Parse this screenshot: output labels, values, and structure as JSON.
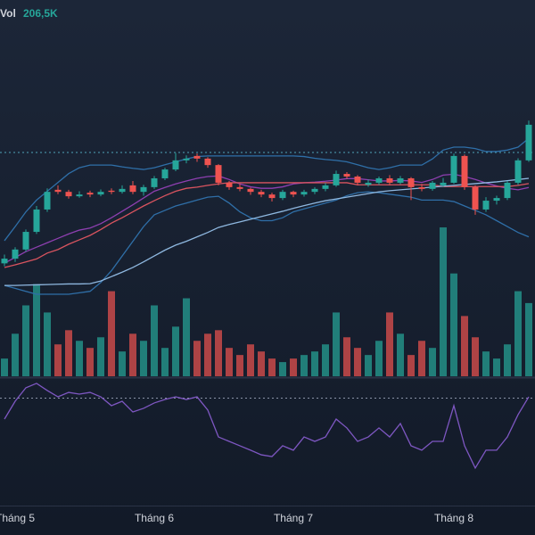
{
  "chart_data": [
    {
      "type": "candlestick",
      "categories": [
        null,
        "Tháng 5",
        null,
        null,
        null,
        null,
        null,
        null,
        null,
        null,
        null,
        null,
        null,
        null,
        "Tháng 6",
        null,
        null,
        null,
        null,
        null,
        null,
        null,
        null,
        null,
        null,
        null,
        null,
        "Tháng 7",
        null,
        null,
        null,
        null,
        null,
        null,
        null,
        null,
        null,
        null,
        null,
        null,
        null,
        null,
        "Tháng 8",
        null,
        null,
        null,
        null,
        null,
        null,
        null
      ],
      "open": [
        21.05,
        21.21,
        21.52,
        22.12,
        22.88,
        23.55,
        23.48,
        23.33,
        23.45,
        23.39,
        23.52,
        23.48,
        23.7,
        23.48,
        23.64,
        23.94,
        24.24,
        24.55,
        24.7,
        24.61,
        24.39,
        23.79,
        23.64,
        23.58,
        23.48,
        23.39,
        23.27,
        23.48,
        23.39,
        23.48,
        23.58,
        23.7,
        24.09,
        24.0,
        23.72,
        23.79,
        23.94,
        23.79,
        23.94,
        23.64,
        23.58,
        23.7,
        23.79,
        24.7,
        23.64,
        22.88,
        23.18,
        23.27,
        23.79,
        24.55
      ],
      "high": [
        21.35,
        21.6,
        22.2,
        23.0,
        23.6,
        23.7,
        23.55,
        23.5,
        23.52,
        23.56,
        23.6,
        23.7,
        23.85,
        23.72,
        24.02,
        24.3,
        24.8,
        24.72,
        24.78,
        24.66,
        24.42,
        23.85,
        23.75,
        23.62,
        23.55,
        23.45,
        23.55,
        23.52,
        23.55,
        23.64,
        23.78,
        24.2,
        24.15,
        24.05,
        23.9,
        24.0,
        24.05,
        24.02,
        23.98,
        23.75,
        23.85,
        23.95,
        24.78,
        24.75,
        23.7,
        23.3,
        23.35,
        23.85,
        24.62,
        25.9
      ],
      "low": [
        20.95,
        21.1,
        21.45,
        22.05,
        22.8,
        23.4,
        23.25,
        23.28,
        23.3,
        23.33,
        23.4,
        23.42,
        23.4,
        23.35,
        23.58,
        23.88,
        24.18,
        24.45,
        24.5,
        24.3,
        23.7,
        23.55,
        23.5,
        23.38,
        23.3,
        23.15,
        23.2,
        23.3,
        23.32,
        23.4,
        23.5,
        23.65,
        23.92,
        23.7,
        23.65,
        23.72,
        23.7,
        23.74,
        23.2,
        23.5,
        23.52,
        23.65,
        23.75,
        23.55,
        22.7,
        22.8,
        23.05,
        23.2,
        23.72,
        24.5
      ],
      "close": [
        21.21,
        21.52,
        22.12,
        22.88,
        23.48,
        23.48,
        23.33,
        23.39,
        23.39,
        23.48,
        23.48,
        23.58,
        23.48,
        23.64,
        23.94,
        24.24,
        24.55,
        24.61,
        24.61,
        24.39,
        23.79,
        23.64,
        23.58,
        23.48,
        23.39,
        23.27,
        23.48,
        23.39,
        23.48,
        23.58,
        23.7,
        24.09,
        24.0,
        23.79,
        23.79,
        23.94,
        23.79,
        23.94,
        23.64,
        23.58,
        23.79,
        23.79,
        24.7,
        23.64,
        22.88,
        23.18,
        23.27,
        23.79,
        24.55,
        25.76
      ],
      "up_color": "#26a69a",
      "down_color": "#ef5350",
      "ylim": [
        20,
        30
      ],
      "series": [
        {
          "color": "#2f6fa8",
          "values": [
            21.82,
            22.3,
            22.8,
            23.2,
            23.5,
            23.8,
            24.1,
            24.3,
            24.39,
            24.39,
            24.39,
            24.33,
            24.28,
            24.24,
            24.3,
            24.4,
            24.5,
            24.6,
            24.68,
            24.7,
            24.7,
            24.7,
            24.7,
            24.7,
            24.7,
            24.7,
            24.7,
            24.7,
            24.68,
            24.62,
            24.58,
            24.55,
            24.5,
            24.4,
            24.3,
            24.24,
            24.3,
            24.39,
            24.39,
            24.39,
            24.6,
            24.9,
            25.0,
            25.0,
            24.95,
            24.85,
            24.85,
            24.9,
            25.0,
            25.3
          ]
        },
        {
          "color": "#2f6fa8",
          "values": [
            20.3,
            20.2,
            20.1,
            20.0,
            20.0,
            20.0,
            20.0,
            20.05,
            20.1,
            20.4,
            20.8,
            21.3,
            21.8,
            22.3,
            22.7,
            22.85,
            23.0,
            23.1,
            23.2,
            23.3,
            23.33,
            23.1,
            22.8,
            22.6,
            22.5,
            22.5,
            22.6,
            22.8,
            22.9,
            23.0,
            23.1,
            23.2,
            23.35,
            23.45,
            23.48,
            23.45,
            23.4,
            23.35,
            23.3,
            23.2,
            23.2,
            23.2,
            23.15,
            23.0,
            22.85,
            22.7,
            22.5,
            22.3,
            22.1,
            21.95
          ]
        },
        {
          "color": "#8e3fb0",
          "values": [
            21.06,
            21.25,
            21.45,
            21.6,
            21.75,
            21.9,
            22.05,
            22.18,
            22.25,
            22.4,
            22.6,
            22.82,
            23.04,
            23.27,
            23.5,
            23.63,
            23.75,
            23.85,
            23.94,
            24.0,
            24.02,
            23.9,
            23.75,
            23.65,
            23.6,
            23.6,
            23.65,
            23.75,
            23.79,
            23.81,
            23.84,
            23.88,
            23.93,
            23.93,
            23.89,
            23.85,
            23.85,
            23.87,
            23.85,
            23.8,
            23.9,
            24.05,
            24.08,
            24.0,
            23.9,
            23.78,
            23.68,
            23.6,
            23.55,
            23.63
          ]
        },
        {
          "color": "#d9545f",
          "values": [
            20.91,
            21.0,
            21.1,
            21.2,
            21.4,
            21.52,
            21.7,
            21.85,
            22.0,
            22.2,
            22.42,
            22.6,
            22.8,
            23.0,
            23.18,
            23.35,
            23.5,
            23.6,
            23.64,
            23.7,
            23.75,
            23.79,
            23.79,
            23.79,
            23.79,
            23.79,
            23.79,
            23.79,
            23.79,
            23.79,
            23.79,
            23.79,
            23.79,
            23.72,
            23.72,
            23.72,
            23.72,
            23.72,
            23.72,
            23.72,
            23.72,
            23.66,
            23.66,
            23.66,
            23.66,
            23.66,
            23.66,
            23.66,
            23.7,
            23.76
          ]
        },
        {
          "color": "#8fb8e0",
          "values": [
            20.3,
            20.3,
            20.31,
            20.32,
            20.33,
            20.34,
            20.35,
            20.35,
            20.36,
            20.45,
            20.6,
            20.75,
            20.91,
            21.1,
            21.3,
            21.5,
            21.67,
            21.8,
            21.95,
            22.1,
            22.27,
            22.37,
            22.46,
            22.55,
            22.64,
            22.73,
            22.82,
            22.92,
            23.01,
            23.1,
            23.18,
            23.24,
            23.3,
            23.36,
            23.42,
            23.48,
            23.52,
            23.55,
            23.58,
            23.61,
            23.64,
            23.67,
            23.7,
            23.73,
            23.76,
            23.79,
            23.82,
            23.86,
            23.9,
            23.94
          ]
        }
      ],
      "hlines": [
        24.82
      ],
      "hline_color": "#4fa3b8"
    },
    {
      "type": "bar",
      "name": "Vol",
      "values": [
        50000,
        120000,
        200000,
        260000,
        180000,
        90000,
        130000,
        100000,
        80000,
        110000,
        240000,
        70000,
        120000,
        100000,
        200000,
        80000,
        140000,
        220000,
        100000,
        120000,
        130000,
        80000,
        60000,
        90000,
        70000,
        50000,
        40000,
        50000,
        60000,
        70000,
        90000,
        180000,
        110000,
        80000,
        60000,
        100000,
        180000,
        120000,
        60000,
        100000,
        80000,
        420000,
        290000,
        170000,
        110000,
        70000,
        50000,
        90000,
        240000,
        206500
      ],
      "value_labels": [
        null,
        null,
        null,
        null,
        null,
        null,
        null,
        null,
        null,
        null,
        null,
        null,
        null,
        null,
        null,
        null,
        null,
        null,
        null,
        null,
        null,
        null,
        null,
        null,
        null,
        null,
        null,
        null,
        null,
        null,
        null,
        null,
        null,
        null,
        null,
        null,
        null,
        null,
        null,
        null,
        null,
        null,
        null,
        null,
        null,
        null,
        null,
        null,
        null,
        "206,5K"
      ],
      "ylim": [
        0,
        420000
      ]
    },
    {
      "type": "line",
      "color": "#7e57c2",
      "values": [
        59.1,
        68.4,
        75.4,
        77.7,
        74.0,
        70.7,
        73.0,
        72.1,
        73.0,
        70.7,
        66.1,
        68.4,
        62.8,
        64.7,
        67.5,
        69.3,
        70.7,
        69.3,
        70.7,
        63.8,
        49.8,
        47.5,
        45.2,
        42.9,
        40.5,
        39.6,
        45.2,
        42.9,
        49.8,
        47.5,
        49.8,
        59.1,
        54.5,
        47.5,
        49.8,
        54.5,
        49.8,
        56.8,
        45.2,
        42.9,
        47.5,
        47.5,
        66.1,
        45.2,
        33.6,
        42.9,
        42.9,
        49.8,
        61.4,
        70.7
      ],
      "ylim": [
        15,
        80
      ],
      "hlines": [
        70
      ],
      "hline_color": "#8a93a6"
    }
  ]
}
